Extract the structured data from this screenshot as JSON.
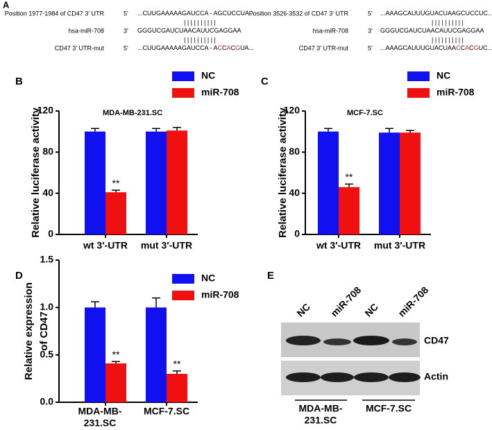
{
  "panel_a": {
    "label": "A",
    "mut_color": "#e0201b",
    "blocks": [
      {
        "rows": [
          {
            "name": "Position 1977-1984 of CD47 3' UTR",
            "end": "5'",
            "seq": [
              {
                "text": "...CUUGAAAAAGAUCCA - AGCUCCUA..."
              }
            ]
          },
          {
            "name": "hsa-miR-708",
            "end": "3'",
            "seq": [
              {
                "text": "GGGUCGAUCUAACAUUCGAGGAA"
              }
            ]
          },
          {
            "name": "CD47 3' UTR-mut",
            "end": "5'",
            "seq": [
              {
                "text": "...CUUGAAAAAGAUCCA - A"
              },
              {
                "text": "C",
                "mutated": true
              },
              {
                "text": "C"
              },
              {
                "text": "A",
                "mutated": true
              },
              {
                "text": "C"
              },
              {
                "text": "G",
                "mutated": true
              },
              {
                "text": "UA..."
              }
            ]
          }
        ],
        "pairs": [
          "| | | |   | | | | | |",
          "| | | |   | | | | | |"
        ]
      },
      {
        "rows": [
          {
            "name": "Position 3526-3532 of CD47 3' UTR",
            "end": "5'",
            "seq": [
              {
                "text": "...AAAGCAUUUGUACUAAGCUCCUC..."
              }
            ]
          },
          {
            "name": "hsa-miR-708",
            "end": "3'",
            "seq": [
              {
                "text": "GGGUCGAUCUAACAUUCGAGGAA"
              }
            ]
          },
          {
            "name": "CD47 3' UTR-mut",
            "end": "5'",
            "seq": [
              {
                "text": "...AAAGCAUUUGUACUAA"
              },
              {
                "text": "C",
                "mutated": true
              },
              {
                "text": "C"
              },
              {
                "text": "A",
                "mutated": true
              },
              {
                "text": "C"
              },
              {
                "text": "G",
                "mutated": true
              },
              {
                "text": "UC..."
              }
            ]
          }
        ],
        "pairs": [
          "| | | |  | | | | | |",
          "| | | |  | | | | | |"
        ]
      }
    ]
  },
  "chart_data": [
    {
      "type": "bar",
      "label": "B",
      "title": "MDA-MB-231.SC",
      "ylabel": [
        "Relative luciferase activity"
      ],
      "categories": [
        [
          "wt 3′-UTR"
        ],
        [
          "mut 3′-UTR"
        ]
      ],
      "series": [
        {
          "name": "NC",
          "color": "#1010f0",
          "values": [
            100,
            100
          ],
          "errors": [
            3,
            3
          ],
          "significance": [
            null,
            null
          ]
        },
        {
          "name": "miR-708",
          "color": "#f01010",
          "values": [
            41,
            101
          ],
          "errors": [
            2,
            3
          ],
          "significance": [
            "**",
            null
          ]
        }
      ],
      "ylim": [
        0,
        120
      ],
      "yticks": [
        0,
        40,
        80,
        120
      ]
    },
    {
      "type": "bar",
      "label": "C",
      "title": "MCF-7.SC",
      "ylabel": [
        "Relative luciferase activity"
      ],
      "categories": [
        [
          "wt 3′-UTR"
        ],
        [
          "mut 3′-UTR"
        ]
      ],
      "series": [
        {
          "name": "NC",
          "color": "#1010f0",
          "values": [
            100,
            99
          ],
          "errors": [
            3,
            4
          ],
          "significance": [
            null,
            null
          ]
        },
        {
          "name": "miR-708",
          "color": "#f01010",
          "values": [
            46,
            99
          ],
          "errors": [
            3,
            2
          ],
          "significance": [
            "**",
            null
          ]
        }
      ],
      "ylim": [
        0,
        120
      ],
      "yticks": [
        0,
        40,
        80,
        120
      ]
    },
    {
      "type": "bar",
      "label": "D",
      "ylabel": [
        "Relative expression",
        "of CD47"
      ],
      "categories": [
        [
          "MDA-MB-",
          "231.SC"
        ],
        [
          "MCF-7.SC"
        ]
      ],
      "series": [
        {
          "name": "NC",
          "color": "#1010f0",
          "values": [
            1.0,
            1.0
          ],
          "errors": [
            0.06,
            0.1
          ],
          "significance": [
            null,
            null
          ]
        },
        {
          "name": "miR-708",
          "color": "#f01010",
          "values": [
            0.41,
            0.3
          ],
          "errors": [
            0.02,
            0.03
          ],
          "significance": [
            "**",
            "**"
          ]
        }
      ],
      "ylim": [
        0,
        1.5
      ],
      "yticks": [
        {
          "value": 0,
          "label": "0.0"
        },
        0.5,
        {
          "value": 1,
          "label": "1.0"
        },
        1.5
      ]
    }
  ],
  "panel_e": {
    "label": "E",
    "lanes": [
      "NC",
      "miR-708",
      "NC",
      "miR-708"
    ],
    "bands": [
      "CD47",
      "Actin"
    ],
    "groups": [
      [
        "MDA-MB-",
        "231.SC"
      ],
      [
        "MCF-7.SC"
      ]
    ]
  }
}
